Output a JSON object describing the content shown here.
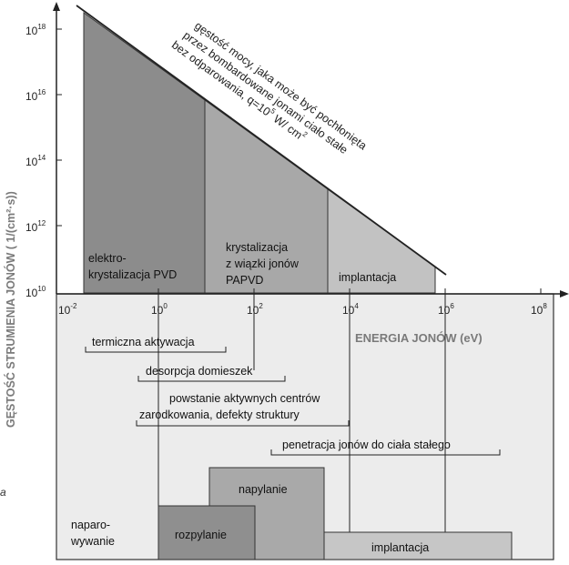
{
  "figure": {
    "y_axis_label": "GĘSTOŚĆ STRUMIENIA JONÓW ( 1/(cm²·s))",
    "x_axis_label": "ENERGIA JONÓW (eV)",
    "x_ticks": [
      {
        "base": "10",
        "exp": "-2"
      },
      {
        "base": "10",
        "exp": "0"
      },
      {
        "base": "10",
        "exp": "2"
      },
      {
        "base": "10",
        "exp": "4"
      },
      {
        "base": "10",
        "exp": "6"
      },
      {
        "base": "10",
        "exp": "8"
      }
    ],
    "y_ticks": [
      {
        "base": "10",
        "exp": "18"
      },
      {
        "base": "10",
        "exp": "16"
      },
      {
        "base": "10",
        "exp": "14"
      },
      {
        "base": "10",
        "exp": "12"
      },
      {
        "base": "10",
        "exp": "10"
      }
    ],
    "diagonal_note": {
      "line1": "gęstość mocy, jaka może być pochłonięta",
      "line2": "przez bombardowane jonami ciało stałe",
      "line3_pre": "bez odparowania, q=10",
      "line3_exp": "5",
      "line3_mid": " W/ cm",
      "line3_exp2": "2"
    },
    "regions": {
      "elektro_line1": "elektro-",
      "elektro_line2": "krystalizacja PVD",
      "papvd_line1": "krystalizacja",
      "papvd_line2": "z wiązki jonów",
      "papvd_line3": "PAPVD",
      "implantacja_top": "implantacja"
    },
    "processes": {
      "termiczna": "termiczna aktywacja",
      "desorpcja": "desorpcja domieszek",
      "powstanie_line1": "powstanie aktywnych centrów",
      "powstanie_line2": "zarodkowania, defekty struktury",
      "penetracja": "penetracja jonów do ciała stałego"
    },
    "bottom": {
      "naparowywanie_line1": "naparo-",
      "naparowywanie_line2": "wywanie",
      "rozpylanie": "rozpylanie",
      "napylanie": "napylanie",
      "implantacja": "implantacja"
    },
    "side_mark": "a",
    "colors": {
      "dark_region": "#8c8c8c",
      "mid_region": "#a8a8a8",
      "light_region": "#c2c2c2",
      "bottom_panel": "#ececec",
      "box_dark": "#8f8f8f",
      "box_mid": "#a9a9a9",
      "box_light": "#c6c6c6",
      "axis_label": "#7a7a7a"
    }
  }
}
